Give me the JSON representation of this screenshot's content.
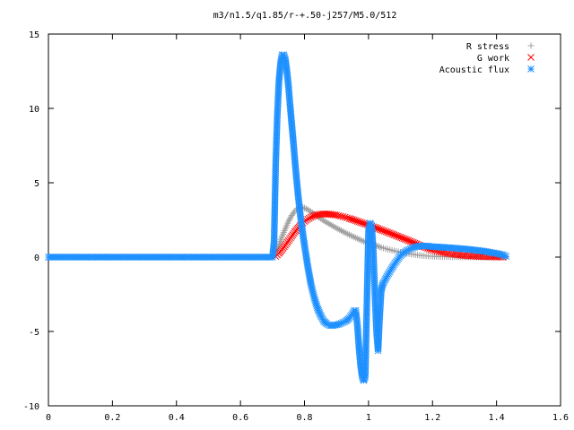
{
  "chart_data": {
    "type": "scatter",
    "title": "m3/n1.5/q1.85/r-+.50-j257/M5.0/512",
    "xlabel": "",
    "ylabel": "",
    "xlim": [
      0,
      1.6
    ],
    "ylim": [
      -10,
      15
    ],
    "xticks": [
      0,
      0.2,
      0.4,
      0.6,
      0.8,
      1,
      1.2,
      1.4,
      1.6
    ],
    "yticks": [
      -10,
      -5,
      0,
      5,
      10,
      15
    ],
    "xtick_labels": [
      "0",
      "0.2",
      "0.4",
      "0.6",
      "0.8",
      "1",
      "1.2",
      "1.4",
      "1.6"
    ],
    "ytick_labels": [
      "-10",
      "-5",
      "0",
      "5",
      "10",
      "15"
    ],
    "grid": false,
    "legend_position": "top-right",
    "series": [
      {
        "name": "R stress",
        "marker": "plus",
        "color": "#a0a0a0",
        "x": [
          0.0,
          0.1,
          0.2,
          0.3,
          0.4,
          0.5,
          0.6,
          0.7,
          0.71,
          0.72,
          0.73,
          0.74,
          0.75,
          0.76,
          0.77,
          0.78,
          0.79,
          0.8,
          0.81,
          0.82,
          0.83,
          0.84,
          0.85,
          0.86,
          0.88,
          0.9,
          0.92,
          0.94,
          0.96,
          0.98,
          1.0,
          1.02,
          1.04,
          1.06,
          1.08,
          1.1,
          1.12,
          1.14,
          1.16,
          1.18,
          1.2,
          1.25,
          1.3,
          1.35,
          1.4,
          1.43
        ],
        "y": [
          0,
          0,
          0,
          0,
          0,
          0,
          0,
          0,
          0.3,
          0.8,
          1.4,
          1.9,
          2.4,
          2.8,
          3.1,
          3.3,
          3.35,
          3.3,
          3.2,
          3.05,
          2.9,
          2.75,
          2.6,
          2.45,
          2.2,
          1.95,
          1.72,
          1.5,
          1.3,
          1.1,
          0.95,
          0.8,
          0.65,
          0.53,
          0.42,
          0.33,
          0.25,
          0.18,
          0.12,
          0.08,
          0.05,
          0.02,
          0.01,
          0,
          0,
          0
        ]
      },
      {
        "name": "G work",
        "marker": "cross",
        "color": "#ff0000",
        "x": [
          0.71,
          0.72,
          0.73,
          0.74,
          0.75,
          0.76,
          0.77,
          0.78,
          0.79,
          0.8,
          0.81,
          0.82,
          0.83,
          0.84,
          0.85,
          0.86,
          0.87,
          0.88,
          0.89,
          0.9,
          0.92,
          0.94,
          0.96,
          0.98,
          1.0,
          1.02,
          1.04,
          1.06,
          1.08,
          1.1,
          1.12,
          1.14,
          1.16,
          1.18,
          1.2,
          1.22,
          1.24,
          1.26,
          1.28,
          1.3,
          1.32,
          1.34,
          1.36,
          1.38,
          1.4,
          1.42
        ],
        "y": [
          0.05,
          0.25,
          0.5,
          0.8,
          1.1,
          1.4,
          1.7,
          1.95,
          2.2,
          2.4,
          2.55,
          2.68,
          2.78,
          2.85,
          2.88,
          2.9,
          2.9,
          2.88,
          2.85,
          2.82,
          2.72,
          2.6,
          2.45,
          2.3,
          2.15,
          2.0,
          1.83,
          1.67,
          1.5,
          1.33,
          1.16,
          0.98,
          0.8,
          0.63,
          0.48,
          0.36,
          0.27,
          0.2,
          0.15,
          0.1,
          0.07,
          0.05,
          0.03,
          0.02,
          0.01,
          0
        ]
      },
      {
        "name": "Acoustic flux",
        "marker": "star",
        "color": "#1e90ff",
        "x": [
          0.0,
          0.05,
          0.1,
          0.15,
          0.2,
          0.25,
          0.3,
          0.35,
          0.4,
          0.45,
          0.5,
          0.55,
          0.6,
          0.65,
          0.7,
          0.705,
          0.71,
          0.715,
          0.72,
          0.725,
          0.73,
          0.735,
          0.74,
          0.745,
          0.75,
          0.755,
          0.76,
          0.765,
          0.77,
          0.775,
          0.78,
          0.785,
          0.79,
          0.8,
          0.81,
          0.82,
          0.83,
          0.84,
          0.85,
          0.86,
          0.87,
          0.88,
          0.89,
          0.9,
          0.91,
          0.92,
          0.93,
          0.94,
          0.95,
          0.955,
          0.96,
          0.965,
          0.97,
          0.975,
          0.98,
          0.985,
          0.99,
          0.995,
          1.0,
          1.005,
          1.01,
          1.015,
          1.02,
          1.025,
          1.03,
          1.035,
          1.04,
          1.045,
          1.05,
          1.06,
          1.08,
          1.1,
          1.12,
          1.14,
          1.16,
          1.18,
          1.2,
          1.22,
          1.24,
          1.26,
          1.28,
          1.3,
          1.32,
          1.34,
          1.36,
          1.38,
          1.4,
          1.42,
          1.43
        ],
        "y": [
          0,
          0,
          0,
          0,
          0,
          0,
          0,
          0,
          0,
          0,
          0,
          0,
          0,
          0,
          0,
          1.0,
          6.2,
          9.5,
          11.8,
          13.0,
          13.6,
          13.6,
          13.3,
          12.5,
          11.5,
          10.2,
          9.0,
          7.8,
          6.5,
          5.3,
          4.2,
          3.2,
          2.3,
          0.8,
          -0.6,
          -1.8,
          -2.7,
          -3.4,
          -3.9,
          -4.3,
          -4.5,
          -4.6,
          -4.6,
          -4.55,
          -4.5,
          -4.4,
          -4.3,
          -4.1,
          -3.8,
          -3.6,
          -3.6,
          -4.5,
          -6.0,
          -7.2,
          -8.0,
          -8.3,
          -8.0,
          -3.0,
          1.8,
          2.3,
          2.1,
          0.4,
          -2.5,
          -5.0,
          -6.3,
          -4.0,
          -2.2,
          -1.8,
          -1.6,
          -1.2,
          -0.5,
          0.1,
          0.45,
          0.65,
          0.75,
          0.75,
          0.7,
          0.68,
          0.65,
          0.62,
          0.58,
          0.55,
          0.5,
          0.45,
          0.4,
          0.32,
          0.25,
          0.15,
          0.05
        ]
      }
    ]
  }
}
